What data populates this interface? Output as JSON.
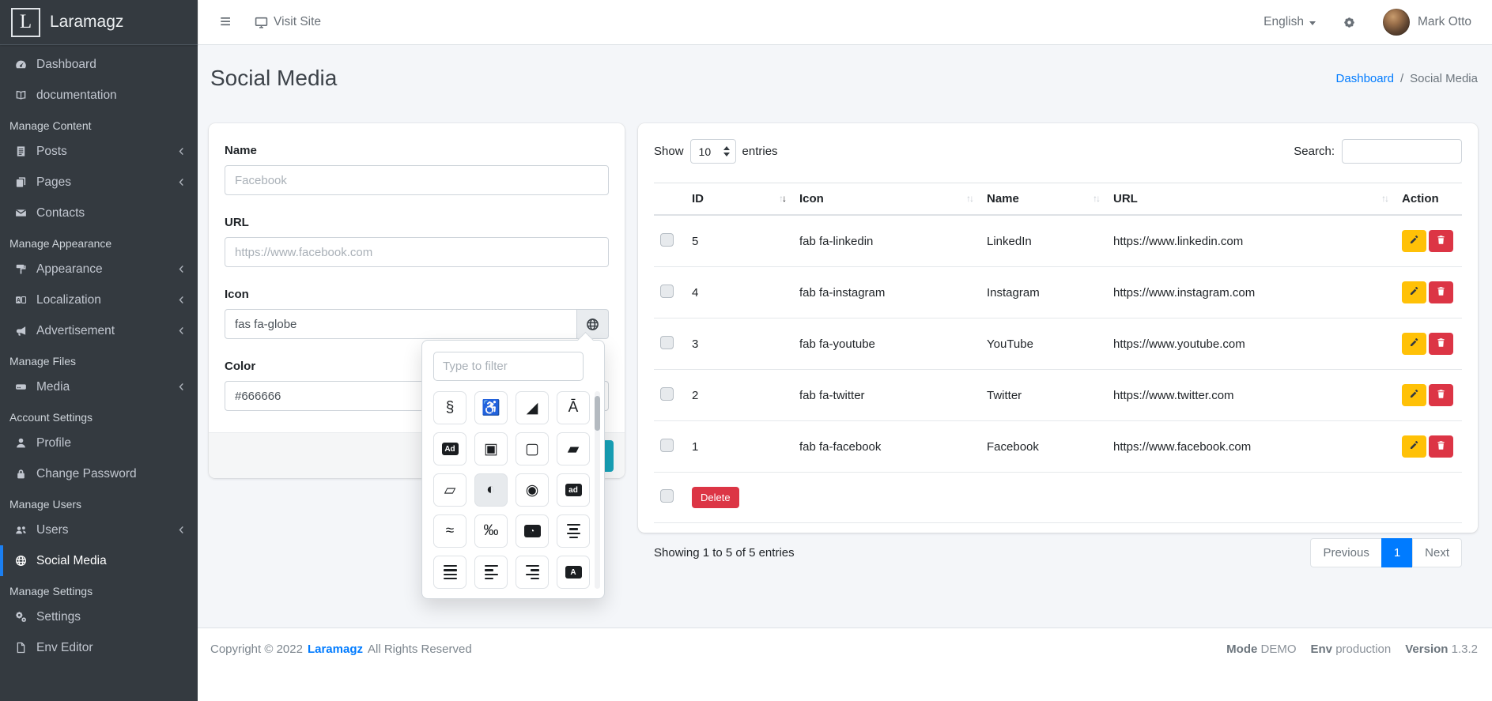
{
  "brand": {
    "logo_letter": "L",
    "title": "Laramagz"
  },
  "navbar": {
    "visit_site": "Visit Site",
    "language": "English",
    "user_name": "Mark Otto"
  },
  "sidebar": {
    "items": [
      {
        "type": "item",
        "icon": "tachometer-icon",
        "label": "Dashboard"
      },
      {
        "type": "item",
        "icon": "book-icon",
        "label": "documentation"
      },
      {
        "type": "header",
        "label": "Manage Content"
      },
      {
        "type": "item",
        "icon": "file-lines-icon",
        "label": "Posts",
        "chevron": true
      },
      {
        "type": "item",
        "icon": "pages-icon",
        "label": "Pages",
        "chevron": true
      },
      {
        "type": "item",
        "icon": "envelope-icon",
        "label": "Contacts"
      },
      {
        "type": "header",
        "label": "Manage Appearance"
      },
      {
        "type": "item",
        "icon": "paint-roller-icon",
        "label": "Appearance",
        "chevron": true
      },
      {
        "type": "item",
        "icon": "language-icon",
        "label": "Localization",
        "chevron": true
      },
      {
        "type": "item",
        "icon": "bullhorn-icon",
        "label": "Advertisement",
        "chevron": true
      },
      {
        "type": "header",
        "label": "Manage Files"
      },
      {
        "type": "item",
        "icon": "media-icon",
        "label": "Media",
        "chevron": true
      },
      {
        "type": "header",
        "label": "Account Settings"
      },
      {
        "type": "item",
        "icon": "user-icon",
        "label": "Profile"
      },
      {
        "type": "item",
        "icon": "lock-icon",
        "label": "Change Password"
      },
      {
        "type": "header",
        "label": "Manage Users"
      },
      {
        "type": "item",
        "icon": "users-icon",
        "label": "Users",
        "chevron": true
      },
      {
        "type": "item",
        "icon": "globe-icon",
        "label": "Social Media",
        "active": true
      },
      {
        "type": "header",
        "label": "Manage Settings"
      },
      {
        "type": "item",
        "icon": "cogs-icon",
        "label": "Settings"
      },
      {
        "type": "item",
        "icon": "file-icon",
        "label": "Env Editor"
      }
    ]
  },
  "page": {
    "title": "Social Media",
    "breadcrumb": {
      "link": "Dashboard",
      "separator": "/",
      "current": "Social Media"
    }
  },
  "form": {
    "name_label": "Name",
    "name_placeholder": "Facebook",
    "url_label": "URL",
    "url_placeholder": "https://www.facebook.com",
    "icon_label": "Icon",
    "icon_value": "fas fa-globe",
    "color_label": "Color",
    "color_value": "#666666"
  },
  "icon_picker": {
    "filter_placeholder": "Type to filter",
    "icons": [
      {
        "name": "500px-icon",
        "render": "char",
        "char": "§"
      },
      {
        "name": "accessible-icon",
        "render": "char",
        "char": "♿"
      },
      {
        "name": "accusoft-icon",
        "render": "char",
        "char": "◢"
      },
      {
        "name": "acquisitions-incorporated-icon",
        "render": "char",
        "char": "Ā"
      },
      {
        "name": "ad-icon",
        "render": "badge",
        "text": "Ad"
      },
      {
        "name": "address-book-icon",
        "render": "char",
        "char": "▣"
      },
      {
        "name": "address-book-outline-icon",
        "render": "char",
        "char": "▢"
      },
      {
        "name": "address-card-icon",
        "render": "char",
        "char": "▰"
      },
      {
        "name": "address-card-outline-icon",
        "render": "char",
        "char": "▱"
      },
      {
        "name": "adjust-icon",
        "render": "char",
        "char": "◐",
        "selected": true
      },
      {
        "name": "adn-icon",
        "render": "char",
        "char": "◉"
      },
      {
        "name": "adversal-icon",
        "render": "badge",
        "text": "ad"
      },
      {
        "name": "affiliatetheme-icon",
        "render": "char",
        "char": "≈"
      },
      {
        "name": "air-freshener-icon",
        "render": "char",
        "char": "‰"
      },
      {
        "name": "timer-app-icon",
        "render": "badge",
        "text": "◔"
      },
      {
        "name": "align-center-icon",
        "render": "bars",
        "variant": "center"
      },
      {
        "name": "align-justify-icon",
        "render": "bars",
        "variant": "justify"
      },
      {
        "name": "align-left-icon",
        "render": "bars",
        "variant": "left"
      },
      {
        "name": "align-right-icon",
        "render": "bars",
        "variant": "right"
      },
      {
        "name": "alipay-icon",
        "render": "badge",
        "text": "A"
      }
    ]
  },
  "table": {
    "show_label": "Show",
    "page_length": "10",
    "entries_label": "entries",
    "search_label": "Search:",
    "search_value": "",
    "columns": [
      {
        "label": "ID",
        "sort": "desc"
      },
      {
        "label": "Icon",
        "sort": "both"
      },
      {
        "label": "Name",
        "sort": "both"
      },
      {
        "label": "URL",
        "sort": "both"
      },
      {
        "label": "Action",
        "sort": "none"
      }
    ],
    "rows": [
      {
        "id": "5",
        "icon": "fab fa-linkedin",
        "name": "LinkedIn",
        "url": "https://www.linkedin.com"
      },
      {
        "id": "4",
        "icon": "fab fa-instagram",
        "name": "Instagram",
        "url": "https://www.instagram.com"
      },
      {
        "id": "3",
        "icon": "fab fa-youtube",
        "name": "YouTube",
        "url": "https://www.youtube.com"
      },
      {
        "id": "2",
        "icon": "fab fa-twitter",
        "name": "Twitter",
        "url": "https://www.twitter.com"
      },
      {
        "id": "1",
        "icon": "fab fa-facebook",
        "name": "Facebook",
        "url": "https://www.facebook.com"
      }
    ],
    "bulk_delete_label": "Delete",
    "info": "Showing 1 to 5 of 5 entries",
    "pagination": {
      "previous": "Previous",
      "page": "1",
      "next": "Next"
    }
  },
  "footer": {
    "copyright": "Copyright © 2022",
    "brand": "Laramagz",
    "rights": "All Rights Reserved",
    "mode_label": "Mode",
    "mode_value": "DEMO",
    "env_label": "Env",
    "env_value": "production",
    "version_label": "Version",
    "version_value": "1.3.2"
  },
  "colors": {
    "accent": "#007bff",
    "sidebar_bg": "#343a40",
    "save_button": "#17a2b8",
    "edit_button": "#ffc107",
    "delete_button": "#dc3545",
    "active_page_bg": "#007bff"
  }
}
